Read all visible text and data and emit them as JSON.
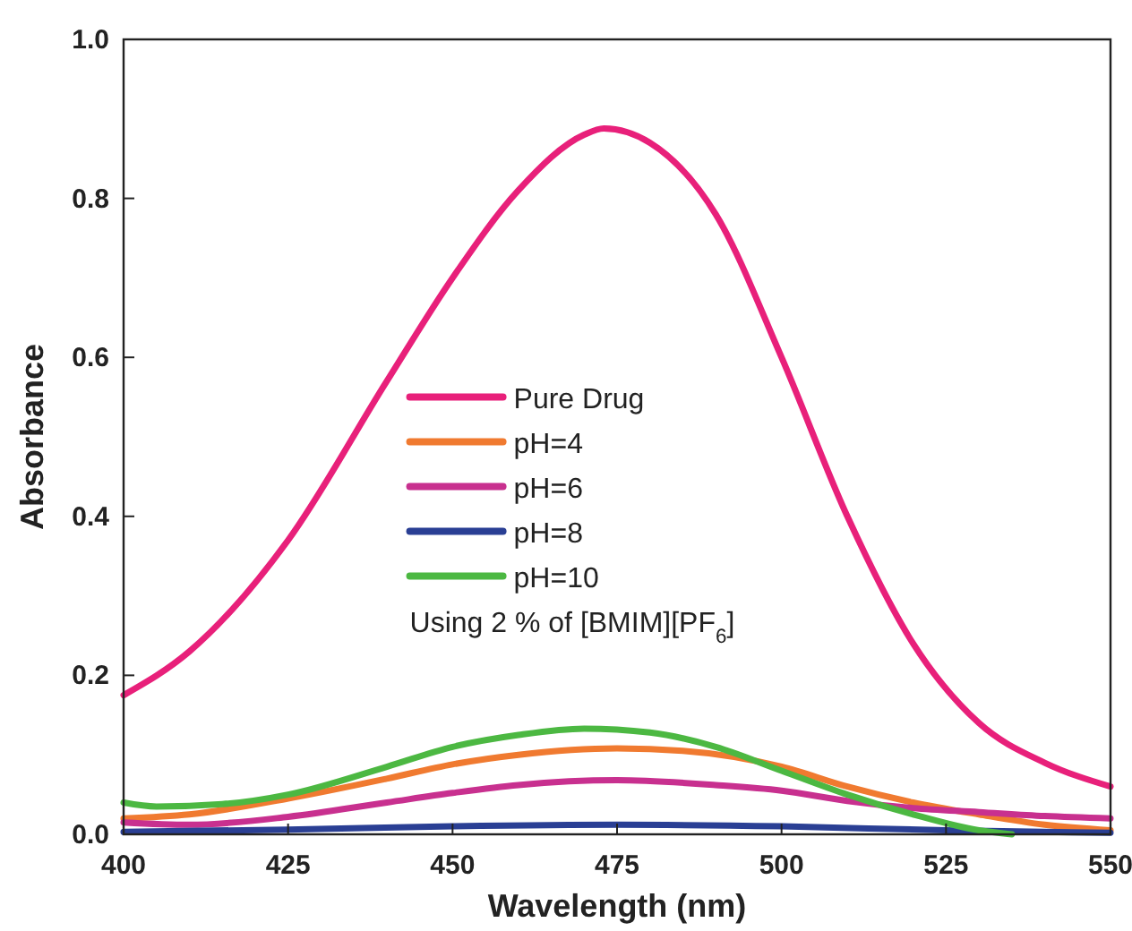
{
  "chart_data": {
    "type": "line",
    "xlabel": "Wavelength (nm)",
    "ylabel": "Absorbance",
    "xlim": [
      400,
      550
    ],
    "ylim": [
      0,
      1
    ],
    "xticks": [
      400,
      425,
      450,
      475,
      500,
      525,
      550
    ],
    "yticks": [
      {
        "value": 0,
        "label": "0.0"
      },
      {
        "value": 0.2,
        "label": "0.2"
      },
      {
        "value": 0.4,
        "label": "0.4"
      },
      {
        "value": 0.6,
        "label": "0.6"
      },
      {
        "value": 0.8,
        "label": "0.8"
      },
      {
        "value": 1,
        "label": "1.0"
      }
    ],
    "grid": false,
    "legend": "center",
    "marker": "none",
    "line_style": "solid",
    "annotations": [
      "Using 2 % of [BMIM][PF$_{6}$]"
    ],
    "series": [
      {
        "name": "Pure Drug",
        "color": "#e8207a",
        "x": [
          400,
          410,
          425,
          440,
          450,
          460,
          470,
          473,
          480,
          490,
          500,
          510,
          520,
          530,
          540,
          550
        ],
        "values": [
          0.175,
          0.23,
          0.37,
          0.57,
          0.7,
          0.81,
          0.88,
          0.888,
          0.87,
          0.78,
          0.6,
          0.4,
          0.24,
          0.14,
          0.09,
          0.06
        ]
      },
      {
        "name": "pH=4",
        "color": "#f07a30",
        "x": [
          400,
          410,
          425,
          440,
          450,
          460,
          475,
          485,
          500,
          510,
          520,
          530,
          540,
          550
        ],
        "values": [
          0.02,
          0.025,
          0.045,
          0.07,
          0.088,
          0.1,
          0.108,
          0.105,
          0.085,
          0.06,
          0.04,
          0.025,
          0.012,
          0.005
        ]
      },
      {
        "name": "pH=6",
        "color": "#c8308f",
        "x": [
          400,
          410,
          425,
          440,
          450,
          460,
          475,
          490,
          500,
          510,
          520,
          530,
          540,
          550
        ],
        "values": [
          0.015,
          0.012,
          0.022,
          0.04,
          0.052,
          0.062,
          0.068,
          0.062,
          0.055,
          0.042,
          0.033,
          0.028,
          0.023,
          0.02
        ]
      },
      {
        "name": "pH=8",
        "color": "#2a3f94",
        "x": [
          400,
          425,
          450,
          475,
          500,
          525,
          540,
          550
        ],
        "values": [
          0.003,
          0.006,
          0.01,
          0.012,
          0.01,
          0.005,
          0.003,
          0.002
        ]
      },
      {
        "name": "pH=10",
        "color": "#4cb842",
        "x": [
          400,
          405,
          415,
          425,
          440,
          450,
          460,
          470,
          480,
          490,
          500,
          510,
          520,
          530,
          535
        ],
        "values": [
          0.04,
          0.035,
          0.038,
          0.05,
          0.085,
          0.11,
          0.125,
          0.133,
          0.128,
          0.11,
          0.08,
          0.05,
          0.025,
          0.005,
          0
        ]
      }
    ]
  }
}
